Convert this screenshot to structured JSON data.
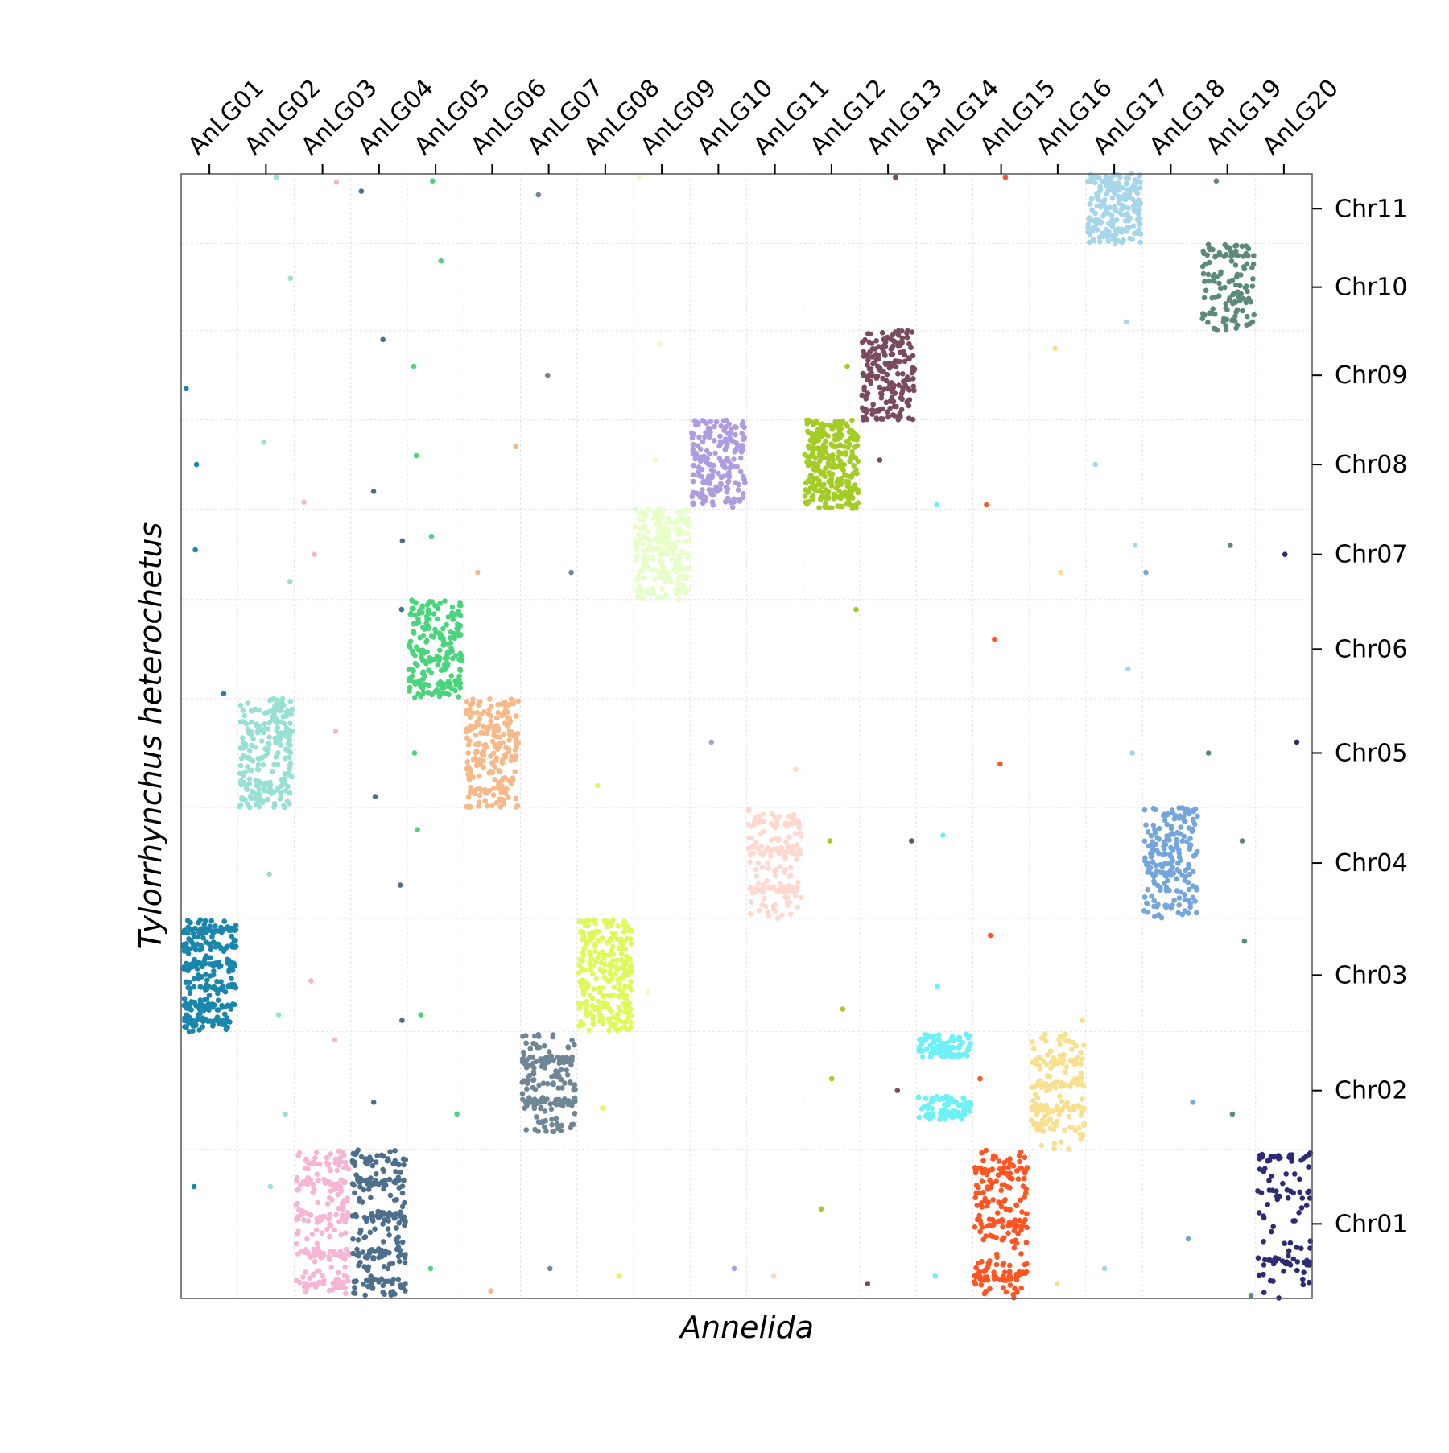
{
  "chart_data": {
    "type": "scatter",
    "title": "",
    "xlabel": "Annelida",
    "ylabel": "Tylorrhynchus heterochetus",
    "x_axis_position": "top",
    "y_axis_position": "right",
    "grid": true,
    "x_categories": [
      "AnLG01",
      "AnLG02",
      "AnLG03",
      "AnLG04",
      "AnLG05",
      "AnLG06",
      "AnLG07",
      "AnLG08",
      "AnLG09",
      "AnLG10",
      "AnLG11",
      "AnLG12",
      "AnLG13",
      "AnLG14",
      "AnLG15",
      "AnLG16",
      "AnLG17",
      "AnLG18",
      "AnLG19",
      "AnLG20"
    ],
    "y_categories": [
      "Chr01",
      "Chr02",
      "Chr03",
      "Chr04",
      "Chr05",
      "Chr06",
      "Chr07",
      "Chr08",
      "Chr09",
      "Chr10",
      "Chr11"
    ],
    "y_category_sizes": [
      1.37,
      1.08,
      1.04,
      1.02,
      1.0,
      0.91,
      0.83,
      0.82,
      0.82,
      0.8,
      0.64
    ],
    "x_category_sizes": [
      1,
      1,
      1,
      1,
      1,
      1,
      1,
      1,
      1,
      1,
      1,
      1,
      1,
      1,
      1,
      1,
      1,
      1,
      1,
      1
    ],
    "series": [
      {
        "name": "AnLG01",
        "color": "#1a86ac",
        "blocks": [
          {
            "chr": "Chr03",
            "from": 0.0,
            "to": 1.0,
            "density": 300,
            "bands": [
              0.08,
              0.22,
              0.4,
              0.6,
              0.75,
              0.9
            ]
          }
        ],
        "stray": [
          [
            "Chr08",
            0.5
          ],
          [
            "Chr07",
            0.55
          ],
          [
            "Chr06",
            0.05
          ],
          [
            "Chr01",
            0.75
          ],
          [
            "Chr09",
            0.35
          ]
        ]
      },
      {
        "name": "AnLG02",
        "color": "#98e0d4",
        "blocks": [
          {
            "chr": "Chr05",
            "from": 0.0,
            "to": 1.0,
            "density": 230
          }
        ],
        "stray": [
          [
            "Chr11",
            0.95
          ],
          [
            "Chr10",
            0.6
          ],
          [
            "Chr08",
            0.75
          ],
          [
            "Chr07",
            0.2
          ],
          [
            "Chr03",
            0.15
          ],
          [
            "Chr04",
            0.4
          ],
          [
            "Chr02",
            0.3
          ],
          [
            "Chr01",
            0.75
          ]
        ]
      },
      {
        "name": "AnLG03",
        "color": "#f6b5d2",
        "blocks": [
          {
            "chr": "Chr01",
            "from": 0.0,
            "to": 1.0,
            "density": 230,
            "bands": [
              0.1,
              0.3,
              0.55,
              0.78,
              0.92
            ]
          }
        ],
        "stray": [
          [
            "Chr11",
            0.88
          ],
          [
            "Chr08",
            0.08
          ],
          [
            "Chr07",
            0.5
          ],
          [
            "Chr05",
            0.7
          ],
          [
            "Chr03",
            0.45
          ],
          [
            "Chr02",
            0.93
          ]
        ]
      },
      {
        "name": "AnLG04",
        "color": "#4e6f8c",
        "blocks": [
          {
            "chr": "Chr01",
            "from": 0.0,
            "to": 1.0,
            "density": 230,
            "bands": [
              0.1,
              0.3,
              0.55,
              0.78,
              0.92
            ]
          }
        ],
        "stray": [
          [
            "Chr11",
            0.75
          ],
          [
            "Chr09",
            0.9
          ],
          [
            "Chr08",
            0.2
          ],
          [
            "Chr07",
            0.65
          ],
          [
            "Chr06",
            0.9
          ],
          [
            "Chr05",
            0.1
          ],
          [
            "Chr04",
            0.3
          ],
          [
            "Chr03",
            0.1
          ],
          [
            "Chr02",
            0.4
          ]
        ]
      },
      {
        "name": "AnLG05",
        "color": "#4ad47c",
        "blocks": [
          {
            "chr": "Chr06",
            "from": 0.0,
            "to": 1.0,
            "density": 210
          }
        ],
        "stray": [
          [
            "Chr11",
            0.9
          ],
          [
            "Chr10",
            0.8
          ],
          [
            "Chr09",
            0.6
          ],
          [
            "Chr08",
            0.6
          ],
          [
            "Chr07",
            0.7
          ],
          [
            "Chr05",
            0.5
          ],
          [
            "Chr04",
            0.8
          ],
          [
            "Chr03",
            0.15
          ],
          [
            "Chr02",
            0.3
          ],
          [
            "Chr01",
            0.2
          ]
        ]
      },
      {
        "name": "AnLG06",
        "color": "#f5b98a",
        "blocks": [
          {
            "chr": "Chr05",
            "from": 0.0,
            "to": 1.0,
            "density": 230
          }
        ],
        "stray": [
          [
            "Chr08",
            0.7
          ],
          [
            "Chr07",
            0.3
          ],
          [
            "Chr01",
            0.05
          ]
        ]
      },
      {
        "name": "AnLG07",
        "color": "#6f8696",
        "blocks": [
          {
            "chr": "Chr02",
            "from": 0.15,
            "to": 1.0,
            "density": 200,
            "bands": [
              0.3,
              0.72
            ]
          }
        ],
        "stray": [
          [
            "Chr11",
            0.7
          ],
          [
            "Chr09",
            0.5
          ],
          [
            "Chr07",
            0.3
          ],
          [
            "Chr01",
            0.2
          ]
        ]
      },
      {
        "name": "AnLG08",
        "color": "#dff95a",
        "blocks": [
          {
            "chr": "Chr03",
            "from": 0.0,
            "to": 1.0,
            "density": 260
          }
        ],
        "stray": [
          [
            "Chr05",
            0.2
          ],
          [
            "Chr02",
            0.35
          ],
          [
            "Chr01",
            0.15
          ]
        ]
      },
      {
        "name": "AnLG09",
        "color": "#e6ffc6",
        "blocks": [
          {
            "chr": "Chr07",
            "from": 0.0,
            "to": 1.0,
            "density": 210
          }
        ],
        "stray": [
          [
            "Chr11",
            0.95
          ],
          [
            "Chr08",
            0.55
          ],
          [
            "Chr03",
            0.35
          ],
          [
            "Chr09",
            0.85
          ]
        ]
      },
      {
        "name": "AnLG10",
        "color": "#ae9be0",
        "blocks": [
          {
            "chr": "Chr08",
            "from": 0.0,
            "to": 1.0,
            "density": 190
          }
        ],
        "stray": [
          [
            "Chr05",
            0.6
          ],
          [
            "Chr01",
            0.2
          ]
        ]
      },
      {
        "name": "AnLG11",
        "color": "#ffd9cf",
        "blocks": [
          {
            "chr": "Chr04",
            "from": 0.0,
            "to": 1.0,
            "density": 190,
            "bands": [
              0.25,
              0.62,
              0.85
            ]
          }
        ],
        "stray": [
          [
            "Chr05",
            0.35
          ],
          [
            "Chr01",
            0.15
          ]
        ]
      },
      {
        "name": "AnLG12",
        "color": "#a3cc26",
        "blocks": [
          {
            "chr": "Chr08",
            "from": 0.0,
            "to": 1.0,
            "density": 280
          }
        ],
        "stray": [
          [
            "Chr09",
            0.6
          ],
          [
            "Chr06",
            0.9
          ],
          [
            "Chr04",
            0.7
          ],
          [
            "Chr03",
            0.2
          ],
          [
            "Chr02",
            0.6
          ],
          [
            "Chr01",
            0.6
          ]
        ]
      },
      {
        "name": "AnLG13",
        "color": "#7a4a5e",
        "blocks": [
          {
            "chr": "Chr09",
            "from": 0.0,
            "to": 1.0,
            "density": 200
          }
        ],
        "stray": [
          [
            "Chr11",
            0.95
          ],
          [
            "Chr08",
            0.55
          ],
          [
            "Chr04",
            0.7
          ],
          [
            "Chr02",
            0.5
          ],
          [
            "Chr01",
            0.1
          ]
        ]
      },
      {
        "name": "AnLG14",
        "color": "#6ef0f7",
        "blocks": [
          {
            "chr": "Chr02",
            "from": 0.25,
            "to": 0.45,
            "density": 80
          },
          {
            "chr": "Chr02",
            "from": 0.78,
            "to": 0.98,
            "density": 80
          }
        ],
        "stray": [
          [
            "Chr08",
            0.05
          ],
          [
            "Chr04",
            0.75
          ],
          [
            "Chr03",
            0.4
          ],
          [
            "Chr01",
            0.15
          ]
        ]
      },
      {
        "name": "AnLG15",
        "color": "#ff5522",
        "blocks": [
          {
            "chr": "Chr01",
            "from": 0.0,
            "to": 1.0,
            "density": 220,
            "bands": [
              0.15,
              0.5,
              0.85
            ]
          }
        ],
        "stray": [
          [
            "Chr11",
            0.95
          ],
          [
            "Chr08",
            0.05
          ],
          [
            "Chr06",
            0.6
          ],
          [
            "Chr05",
            0.4
          ],
          [
            "Chr03",
            0.85
          ],
          [
            "Chr02",
            0.6
          ]
        ]
      },
      {
        "name": "AnLG16",
        "color": "#f9e08e",
        "blocks": [
          {
            "chr": "Chr02",
            "from": 0.0,
            "to": 1.0,
            "density": 200,
            "bands": [
              0.35,
              0.55,
              0.75
            ]
          }
        ],
        "stray": [
          [
            "Chr09",
            0.8
          ],
          [
            "Chr07",
            0.3
          ],
          [
            "Chr03",
            0.1
          ],
          [
            "Chr01",
            0.1
          ]
        ]
      },
      {
        "name": "AnLG17",
        "color": "#a6d6ea",
        "blocks": [
          {
            "chr": "Chr11",
            "from": 0.0,
            "to": 1.0,
            "density": 200
          }
        ],
        "stray": [
          [
            "Chr10",
            0.1
          ],
          [
            "Chr08",
            0.5
          ],
          [
            "Chr07",
            0.6
          ],
          [
            "Chr06",
            0.3
          ],
          [
            "Chr05",
            0.5
          ],
          [
            "Chr01",
            0.2
          ]
        ]
      },
      {
        "name": "AnLG18",
        "color": "#74a5db",
        "blocks": [
          {
            "chr": "Chr04",
            "from": 0.0,
            "to": 1.0,
            "density": 200
          }
        ],
        "stray": [
          [
            "Chr07",
            0.3
          ],
          [
            "Chr02",
            0.4
          ],
          [
            "Chr01",
            0.4
          ]
        ]
      },
      {
        "name": "AnLG19",
        "color": "#5c8a78",
        "blocks": [
          {
            "chr": "Chr10",
            "from": 0.0,
            "to": 1.0,
            "density": 120
          }
        ],
        "stray": [
          [
            "Chr11",
            0.9
          ],
          [
            "Chr07",
            0.6
          ],
          [
            "Chr05",
            0.5
          ],
          [
            "Chr04",
            0.7
          ],
          [
            "Chr03",
            0.8
          ],
          [
            "Chr02",
            0.3
          ],
          [
            "Chr01",
            0.02
          ]
        ]
      },
      {
        "name": "AnLG20",
        "color": "#2e2b74",
        "blocks": [
          {
            "chr": "Chr01",
            "from": 0.0,
            "to": 1.0,
            "density": 110,
            "bands": [
              0.25,
              0.7,
              0.95
            ]
          }
        ],
        "stray": [
          [
            "Chr07",
            0.5
          ],
          [
            "Chr05",
            0.6
          ]
        ]
      }
    ]
  }
}
